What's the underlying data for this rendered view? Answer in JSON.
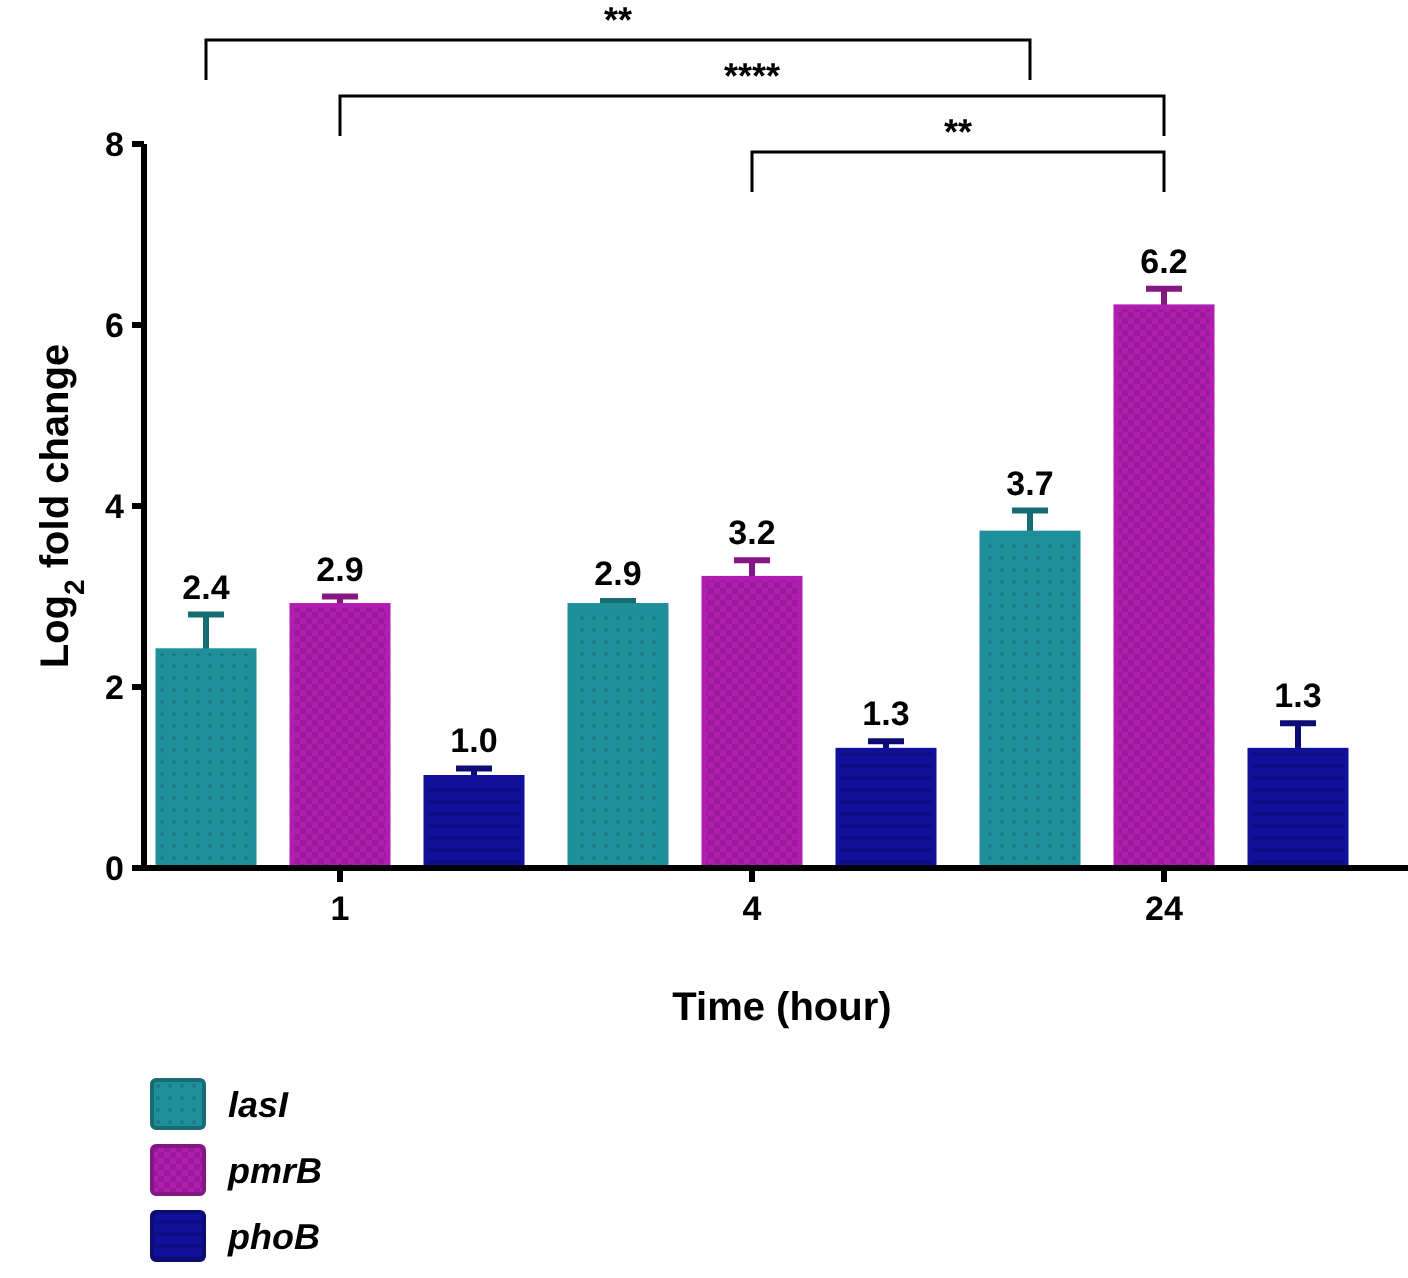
{
  "chart_data": {
    "type": "bar",
    "xlabel": "Time (hour)",
    "ylabel": "Log$_{2}$ fold change",
    "categories": [
      "1",
      "4",
      "24"
    ],
    "series": [
      {
        "name": "lasI",
        "color": "#1f8f9a",
        "values": [
          2.4,
          2.9,
          3.7
        ],
        "errors": [
          0.4,
          0.05,
          0.25
        ],
        "value_labels": [
          "2.4",
          "2.9",
          "3.7"
        ]
      },
      {
        "name": "pmrB",
        "color": "#b01eb0",
        "values": [
          2.9,
          3.2,
          6.2
        ],
        "errors": [
          0.1,
          0.2,
          0.2
        ],
        "value_labels": [
          "2.9",
          "3.2",
          "6.2"
        ]
      },
      {
        "name": "phoB",
        "color": "#10109a",
        "values": [
          1.0,
          1.3,
          1.3
        ],
        "errors": [
          0.1,
          0.1,
          0.3
        ],
        "value_labels": [
          "1.0",
          "1.3",
          "1.3"
        ]
      }
    ],
    "ylim": [
      0,
      8
    ],
    "yticks": [
      0,
      2,
      4,
      6,
      8
    ],
    "legend": "bottom left",
    "annotations": [
      "**",
      "****",
      "**"
    ]
  }
}
